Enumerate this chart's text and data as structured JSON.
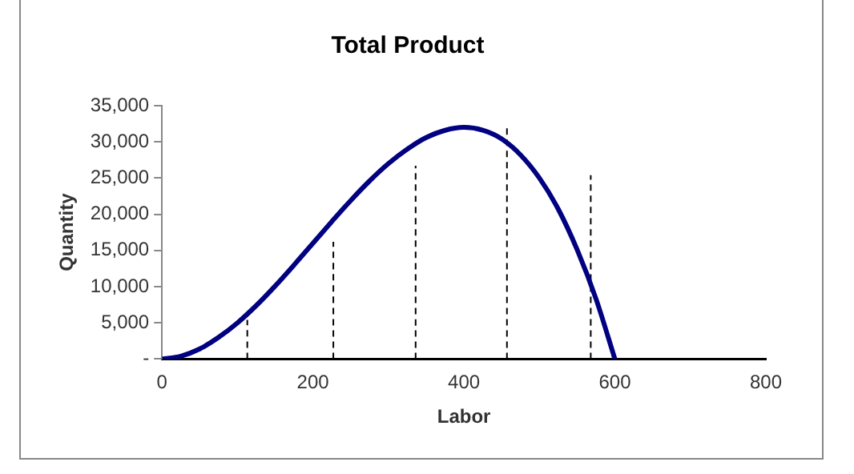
{
  "chart_data": {
    "type": "line",
    "title": "Total Product",
    "xlabel": "Labor",
    "ylabel": "Quantity",
    "xlim": [
      0,
      800
    ],
    "ylim": [
      0,
      35000
    ],
    "xticks": [
      0,
      200,
      400,
      600,
      800
    ],
    "yticks": [
      {
        "value": 0,
        "label": "-"
      },
      {
        "value": 5000,
        "label": "5,000"
      },
      {
        "value": 10000,
        "label": "10,000"
      },
      {
        "value": 15000,
        "label": "15,000"
      },
      {
        "value": 20000,
        "label": "20,000"
      },
      {
        "value": 25000,
        "label": "25,000"
      },
      {
        "value": 30000,
        "label": "30,000"
      },
      {
        "value": 35000,
        "label": "35,000"
      }
    ],
    "grid": false,
    "legend": false,
    "marker": "none",
    "series": [
      {
        "color": "#000080",
        "line_style": "solid",
        "x": [
          0,
          25,
          50,
          75,
          100,
          125,
          150,
          175,
          200,
          225,
          250,
          275,
          300,
          325,
          350,
          375,
          400,
          425,
          450,
          475,
          500,
          525,
          550,
          575,
          600
        ],
        "values": [
          0,
          400,
          1400,
          3000,
          5000,
          7400,
          10100,
          13000,
          16000,
          19000,
          21900,
          24600,
          27000,
          29000,
          30600,
          31600,
          32000,
          31600,
          30400,
          28200,
          25000,
          20700,
          15100,
          8300,
          0
        ]
      },
      {
        "color": "#000000",
        "line_style": "dashed",
        "x": [
          113,
          113
        ],
        "values": [
          0,
          5400
        ]
      },
      {
        "color": "#000000",
        "line_style": "dashed",
        "x": [
          227,
          227
        ],
        "values": [
          0,
          16200
        ]
      },
      {
        "color": "#000000",
        "line_style": "dashed",
        "x": [
          336,
          336
        ],
        "values": [
          0,
          26700
        ]
      },
      {
        "color": "#000000",
        "line_style": "dashed",
        "x": [
          457,
          457
        ],
        "values": [
          0,
          32000
        ]
      },
      {
        "color": "#000000",
        "line_style": "dashed",
        "x": [
          568,
          568
        ],
        "values": [
          0,
          25400
        ]
      }
    ]
  }
}
